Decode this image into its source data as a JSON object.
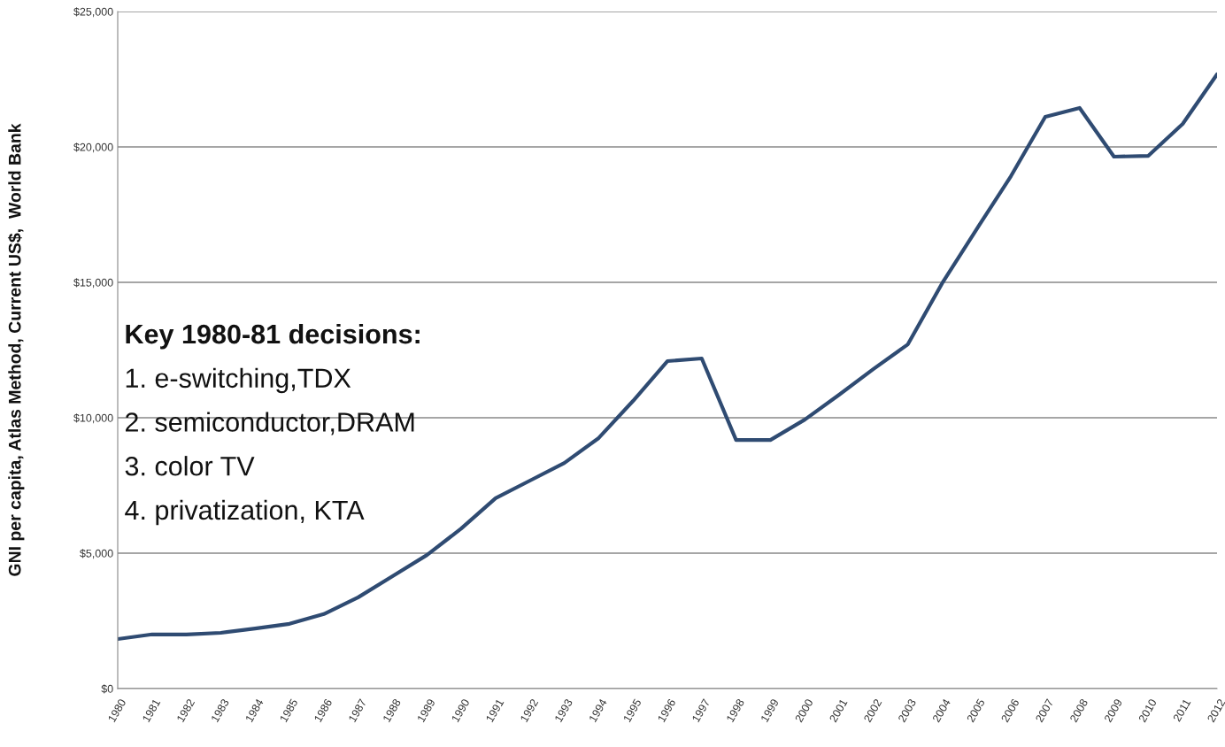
{
  "chart_data": {
    "type": "line",
    "ylabel": "GNI per capita, Atlas Method, Current US$,  World Bank",
    "categories": [
      "1980",
      "1981",
      "1982",
      "1983",
      "1984",
      "1985",
      "1986",
      "1987",
      "1988",
      "1989",
      "1990",
      "1991",
      "1992",
      "1993",
      "1994",
      "1995",
      "1996",
      "1997",
      "1998",
      "1999",
      "2000",
      "2001",
      "2002",
      "2003",
      "2004",
      "2005",
      "2006",
      "2007",
      "2008",
      "2009",
      "2010",
      "2011",
      "2012"
    ],
    "series": [
      {
        "color": "#2f4b72",
        "values": [
          1830,
          2000,
          2000,
          2060,
          2220,
          2390,
          2750,
          3370,
          4150,
          4930,
          5910,
          7030,
          7680,
          8330,
          9250,
          10620,
          12090,
          12190,
          9180,
          9180,
          9930,
          10850,
          11800,
          12710,
          14970,
          16960,
          18920,
          21110,
          21440,
          19640,
          19670,
          20850,
          22680
        ]
      }
    ],
    "ylim": [
      0,
      25000
    ],
    "yticks": [
      {
        "value": 0,
        "label": "$0"
      },
      {
        "value": 5000,
        "label": "$5,000"
      },
      {
        "value": 10000,
        "label": "$10,000"
      },
      {
        "value": 15000,
        "label": "$15,000"
      },
      {
        "value": 20000,
        "label": "$20,000"
      },
      {
        "value": 25000,
        "label": "$25,000"
      }
    ],
    "grid": "y",
    "annotations": [
      "Key 1980-81 decisions:",
      "1. e-switching,TDX",
      "2. semiconductor,DRAM",
      "3. color TV",
      "4. privatization, KTA"
    ]
  }
}
